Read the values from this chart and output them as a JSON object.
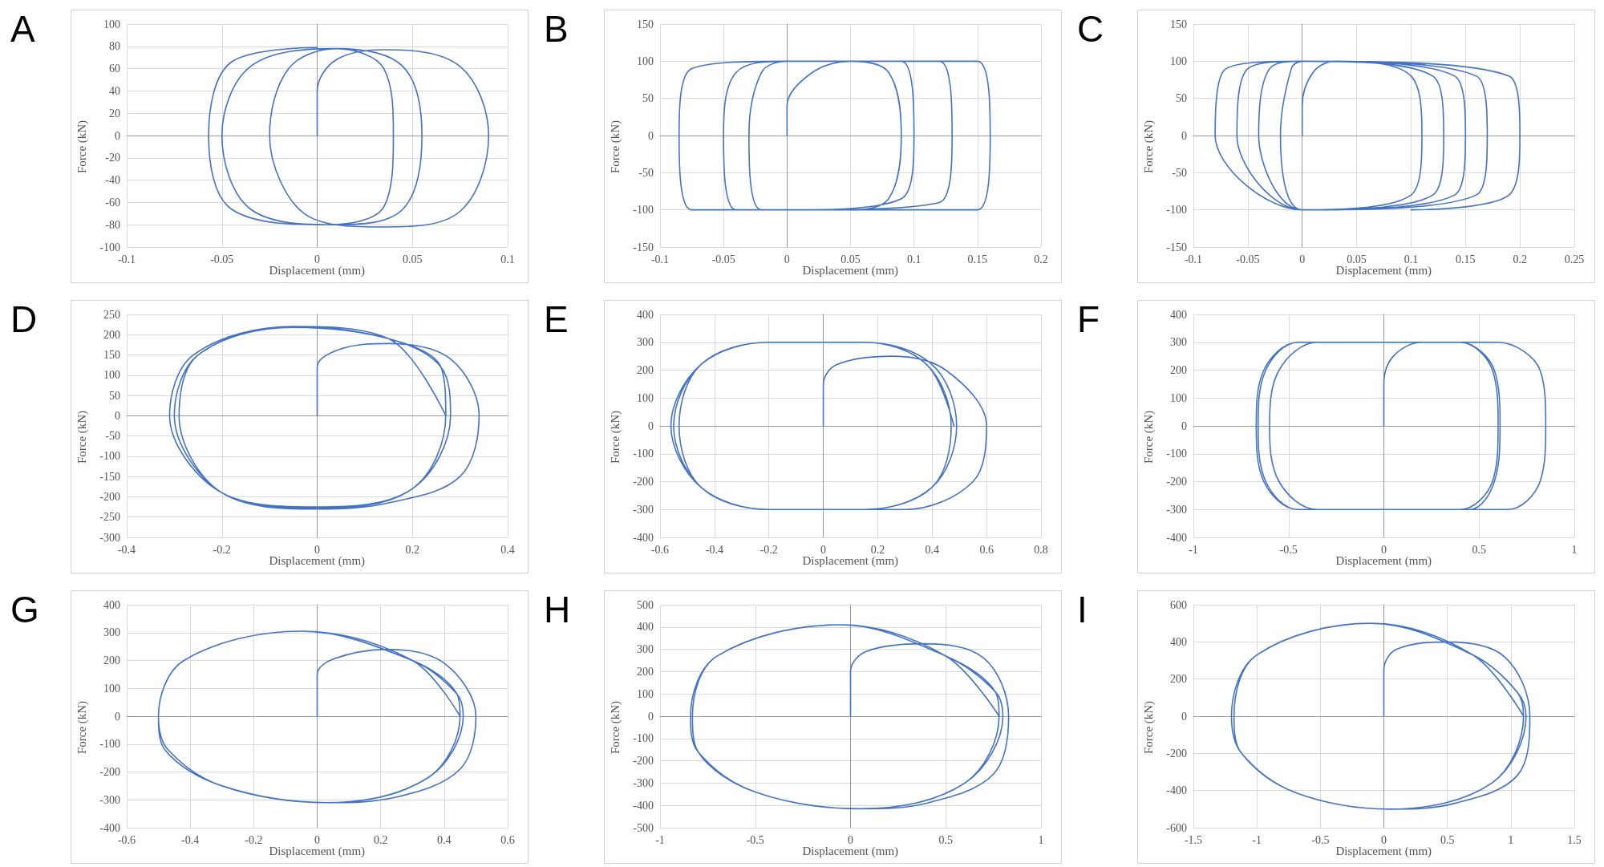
{
  "chart_data": [
    {
      "type": "line",
      "title": "A",
      "xlabel": "Displacement (mm)",
      "ylabel": "Force (kN)",
      "xlim": [
        -0.1,
        0.1
      ],
      "xticks": [
        -0.1,
        -0.05,
        0,
        0.05,
        0.1
      ],
      "ylim": [
        -100,
        100
      ],
      "yticks": [
        -100,
        -80,
        -60,
        -40,
        -20,
        0,
        20,
        40,
        60,
        80,
        100
      ],
      "grid": true,
      "marker": "none",
      "line_style": "solid",
      "series": [
        {
          "color": "#4472c4",
          "x": [
            0,
            0,
            0.01,
            0.035,
            0.075,
            0.09,
            0.075,
            0.035,
            -0.005,
            -0.025,
            -0.015,
            0.01,
            0.045,
            0.055,
            0.045,
            0.01,
            -0.035,
            -0.05,
            -0.035,
            0.01,
            0.035,
            0.04,
            0.035,
            0.005,
            -0.045,
            -0.057,
            -0.045,
            0
          ],
          "values": [
            0,
            40,
            68,
            77,
            62,
            0,
            -68,
            -82,
            -72,
            0,
            60,
            78,
            62,
            0,
            -66,
            -80,
            -66,
            0,
            62,
            78,
            60,
            0,
            -64,
            -80,
            -66,
            0,
            66,
            79
          ]
        }
      ]
    },
    {
      "type": "line",
      "title": "B",
      "xlabel": "Displacement (mm)",
      "ylabel": "Force (kN)",
      "xlim": [
        -0.1,
        0.2
      ],
      "xticks": [
        -0.1,
        -0.05,
        0,
        0.05,
        0.1,
        0.15,
        0.2
      ],
      "ylim": [
        -150,
        150
      ],
      "yticks": [
        -150,
        -100,
        -50,
        0,
        50,
        100,
        150
      ],
      "grid": true,
      "marker": "none",
      "line_style": "solid",
      "series": [
        {
          "color": "#4472c4",
          "x": [
            0,
            0,
            0.02,
            0.05,
            0.08,
            0.09,
            0.08,
            0.05,
            -0.02,
            -0.03,
            -0.02,
            0,
            0.09,
            0.1,
            0.09,
            0,
            -0.04,
            -0.05,
            -0.04,
            0,
            0.12,
            0.13,
            0.12,
            0,
            -0.075,
            -0.085,
            -0.075,
            0,
            0.15,
            0.16,
            0.15,
            0.05
          ],
          "values": [
            0,
            40,
            85,
            100,
            85,
            0,
            -85,
            -100,
            -100,
            0,
            85,
            100,
            100,
            0,
            -85,
            -100,
            -100,
            0,
            85,
            100,
            100,
            0,
            -90,
            -100,
            -100,
            0,
            90,
            100,
            100,
            0,
            -100,
            -100
          ]
        }
      ]
    },
    {
      "type": "line",
      "title": "C",
      "xlabel": "Displacement (mm)",
      "ylabel": "Force (kN)",
      "xlim": [
        -0.1,
        0.25
      ],
      "xticks": [
        -0.1,
        -0.05,
        0,
        0.05,
        0.1,
        0.15,
        0.2,
        0.25
      ],
      "ylim": [
        -150,
        150
      ],
      "yticks": [
        -150,
        -100,
        -50,
        0,
        50,
        100,
        150
      ],
      "grid": true,
      "marker": "none",
      "line_style": "solid",
      "series": [
        {
          "color": "#4472c4",
          "x": [
            0,
            0,
            0.01,
            0.03,
            0.1,
            0.11,
            0.1,
            0,
            -0.02,
            -0.01,
            0,
            0.12,
            0.13,
            0.12,
            0,
            -0.04,
            -0.03,
            0,
            0.14,
            0.15,
            0.14,
            0,
            -0.06,
            -0.05,
            0,
            0.16,
            0.17,
            0.16,
            0,
            -0.08,
            -0.07,
            0,
            0.19,
            0.2,
            0.19,
            0.1
          ],
          "values": [
            0,
            40,
            85,
            100,
            80,
            0,
            -80,
            -100,
            0,
            90,
            100,
            80,
            0,
            -80,
            -100,
            0,
            90,
            100,
            80,
            0,
            -80,
            -100,
            0,
            90,
            100,
            80,
            0,
            -80,
            -100,
            0,
            90,
            100,
            80,
            0,
            -80,
            -100
          ]
        }
      ]
    },
    {
      "type": "line",
      "title": "D",
      "xlabel": "Displacement (mm)",
      "ylabel": "Force (kN)",
      "xlim": [
        -0.4,
        0.4
      ],
      "xticks": [
        -0.4,
        -0.2,
        0,
        0.2,
        0.4
      ],
      "ylim": [
        -300,
        250
      ],
      "yticks": [
        -300,
        -250,
        -200,
        -150,
        -100,
        -50,
        0,
        50,
        100,
        150,
        200,
        250
      ],
      "grid": true,
      "marker": "none",
      "line_style": "solid",
      "series": [
        {
          "color": "#4472c4",
          "x": [
            0,
            0,
            0.05,
            0.15,
            0.28,
            0.34,
            0.3,
            0.15,
            0,
            -0.2,
            -0.3,
            -0.25,
            -0.05,
            0.15,
            0.26,
            0.27,
            0.2,
            0,
            -0.2,
            -0.29,
            -0.25,
            -0.05,
            0.15,
            0.26,
            0.28,
            0.2,
            0,
            -0.2,
            -0.31,
            -0.26,
            -0.05,
            0.15,
            0.27
          ],
          "values": [
            0,
            120,
            165,
            178,
            140,
            0,
            -150,
            -215,
            -230,
            -190,
            0,
            150,
            220,
            190,
            120,
            0,
            -180,
            -228,
            -190,
            0,
            150,
            218,
            190,
            120,
            0,
            -180,
            -225,
            -190,
            0,
            150,
            220,
            190,
            0
          ]
        }
      ]
    },
    {
      "type": "line",
      "title": "E",
      "xlabel": "Displacement (mm)",
      "ylabel": "Force (kN)",
      "xlim": [
        -0.6,
        0.8
      ],
      "xticks": [
        -0.6,
        -0.4,
        -0.2,
        0,
        0.2,
        0.4,
        0.6,
        0.8
      ],
      "ylim": [
        -400,
        400
      ],
      "yticks": [
        -400,
        -300,
        -200,
        -100,
        0,
        100,
        200,
        300,
        400
      ],
      "grid": true,
      "marker": "none",
      "line_style": "solid",
      "series": [
        {
          "color": "#4472c4",
          "x": [
            0,
            0,
            0.05,
            0.25,
            0.45,
            0.6,
            0.55,
            0.3,
            0,
            -0.2,
            -0.45,
            -0.55,
            -0.45,
            -0.2,
            0.15,
            0.38,
            0.47,
            0.4,
            0.15,
            -0.2,
            -0.45,
            -0.53,
            -0.45,
            -0.2,
            0.15,
            0.4,
            0.49,
            0.4,
            0.15,
            -0.2,
            -0.45,
            -0.56,
            -0.45,
            -0.2,
            0.15,
            0.38,
            0.48
          ],
          "values": [
            0,
            150,
            220,
            250,
            200,
            0,
            -200,
            -300,
            -300,
            -300,
            -220,
            0,
            220,
            300,
            300,
            220,
            0,
            -220,
            -300,
            -300,
            -220,
            0,
            220,
            300,
            300,
            220,
            0,
            -220,
            -300,
            -300,
            -220,
            0,
            220,
            300,
            300,
            220,
            0
          ]
        }
      ]
    },
    {
      "type": "line",
      "title": "F",
      "xlabel": "Displacement (mm)",
      "ylabel": "Force (kN)",
      "xlim": [
        -1,
        1
      ],
      "xticks": [
        -1,
        -0.5,
        0,
        0.5,
        1
      ],
      "ylim": [
        -400,
        400
      ],
      "yticks": [
        -400,
        -300,
        -200,
        -100,
        0,
        100,
        200,
        300,
        400
      ],
      "grid": true,
      "marker": "none",
      "line_style": "solid",
      "series": [
        {
          "color": "#4472c4",
          "x": [
            0,
            0,
            0.05,
            0.2,
            0.6,
            0.82,
            0.85,
            0.82,
            0.65,
            -0.35,
            -0.55,
            -0.6,
            -0.55,
            -0.35,
            0.4,
            0.57,
            0.6,
            0.57,
            0.4,
            -0.45,
            -0.62,
            -0.66,
            -0.62,
            -0.45,
            0.4,
            0.58,
            0.61,
            0.58,
            0.45,
            -0.45,
            -0.63,
            -0.67,
            -0.63,
            -0.45,
            0.4
          ],
          "values": [
            0,
            150,
            250,
            300,
            300,
            200,
            0,
            -200,
            -300,
            -300,
            -200,
            0,
            200,
            300,
            300,
            200,
            0,
            -200,
            -300,
            -300,
            -200,
            0,
            200,
            300,
            300,
            200,
            0,
            -200,
            -300,
            -300,
            -200,
            0,
            200,
            300,
            300
          ]
        }
      ]
    },
    {
      "type": "line",
      "title": "G",
      "xlabel": "Displacement (mm)",
      "ylabel": "Force (kN)",
      "xlim": [
        -0.6,
        0.6
      ],
      "xticks": [
        -0.6,
        -0.4,
        -0.2,
        0,
        0.2,
        0.4,
        0.6
      ],
      "ylim": [
        -400,
        400
      ],
      "yticks": [
        -400,
        -300,
        -200,
        -100,
        0,
        100,
        200,
        300,
        400
      ],
      "grid": true,
      "marker": "none",
      "line_style": "solid",
      "series": [
        {
          "color": "#4472c4",
          "x": [
            0,
            0,
            0.05,
            0.22,
            0.4,
            0.5,
            0.45,
            0.25,
            0.03,
            -0.3,
            -0.48,
            -0.5,
            -0.42,
            -0.05,
            0.3,
            0.44,
            0.45,
            0.35,
            0.03,
            -0.3,
            -0.47,
            -0.5,
            -0.42,
            -0.05,
            0.3,
            0.44,
            0.46,
            0.35,
            0.03,
            -0.3,
            -0.48,
            -0.5,
            -0.42,
            -0.05,
            0.3,
            0.45
          ],
          "values": [
            0,
            150,
            205,
            240,
            190,
            0,
            -190,
            -290,
            -310,
            -250,
            -120,
            0,
            200,
            305,
            200,
            80,
            0,
            -220,
            -310,
            -250,
            -120,
            0,
            200,
            305,
            200,
            80,
            0,
            -220,
            -310,
            -250,
            -120,
            0,
            200,
            305,
            200,
            0
          ]
        }
      ]
    },
    {
      "type": "line",
      "title": "H",
      "xlabel": "Displacement (mm)",
      "ylabel": "Force (kN)",
      "xlim": [
        -1,
        1
      ],
      "xticks": [
        -1,
        -0.5,
        0,
        0.5,
        1
      ],
      "ylim": [
        -500,
        500
      ],
      "yticks": [
        -500,
        -400,
        -300,
        -200,
        -100,
        0,
        100,
        200,
        300,
        400,
        500
      ],
      "grid": true,
      "marker": "none",
      "line_style": "solid",
      "series": [
        {
          "color": "#4472c4",
          "x": [
            0,
            0,
            0.08,
            0.38,
            0.7,
            0.83,
            0.75,
            0.4,
            0.05,
            -0.5,
            -0.8,
            -0.83,
            -0.7,
            -0.05,
            0.5,
            0.76,
            0.78,
            0.6,
            0.05,
            -0.5,
            -0.8,
            -0.83,
            -0.7,
            -0.05,
            0.5,
            0.76,
            0.8,
            0.6,
            0.05,
            -0.5,
            -0.8,
            -0.84,
            -0.7,
            -0.05,
            0.5,
            0.78
          ],
          "values": [
            0,
            200,
            290,
            325,
            260,
            0,
            -260,
            -390,
            -415,
            -340,
            -160,
            0,
            270,
            410,
            270,
            110,
            0,
            -300,
            -415,
            -340,
            -160,
            0,
            270,
            410,
            270,
            110,
            0,
            -300,
            -415,
            -340,
            -160,
            0,
            270,
            410,
            270,
            0
          ]
        }
      ]
    },
    {
      "type": "line",
      "title": "I",
      "xlabel": "Displacement (mm)",
      "ylabel": "Force (kN)",
      "xlim": [
        -1.5,
        1.5
      ],
      "xticks": [
        -1.5,
        -1,
        -0.5,
        0,
        0.5,
        1,
        1.5
      ],
      "ylim": [
        -600,
        600
      ],
      "yticks": [
        -600,
        -400,
        -200,
        0,
        200,
        400,
        600
      ],
      "grid": true,
      "marker": "none",
      "line_style": "solid",
      "series": [
        {
          "color": "#4472c4",
          "x": [
            0,
            0,
            0.1,
            0.5,
            0.95,
            1.15,
            1.05,
            0.55,
            0.05,
            -0.7,
            -1.12,
            -1.18,
            -1,
            -0.1,
            0.7,
            1.05,
            1.1,
            0.85,
            0.05,
            -0.7,
            -1.12,
            -1.18,
            -1,
            -0.1,
            0.7,
            1.05,
            1.12,
            0.85,
            0.05,
            -0.7,
            -1.12,
            -1.2,
            -1,
            -0.1,
            0.7,
            1.1
          ],
          "values": [
            0,
            250,
            360,
            400,
            320,
            0,
            -320,
            -470,
            -500,
            -410,
            -200,
            0,
            330,
            500,
            330,
            130,
            0,
            -360,
            -500,
            -410,
            -200,
            0,
            330,
            500,
            330,
            130,
            0,
            -360,
            -500,
            -410,
            -200,
            0,
            330,
            500,
            330,
            0
          ]
        }
      ]
    }
  ]
}
